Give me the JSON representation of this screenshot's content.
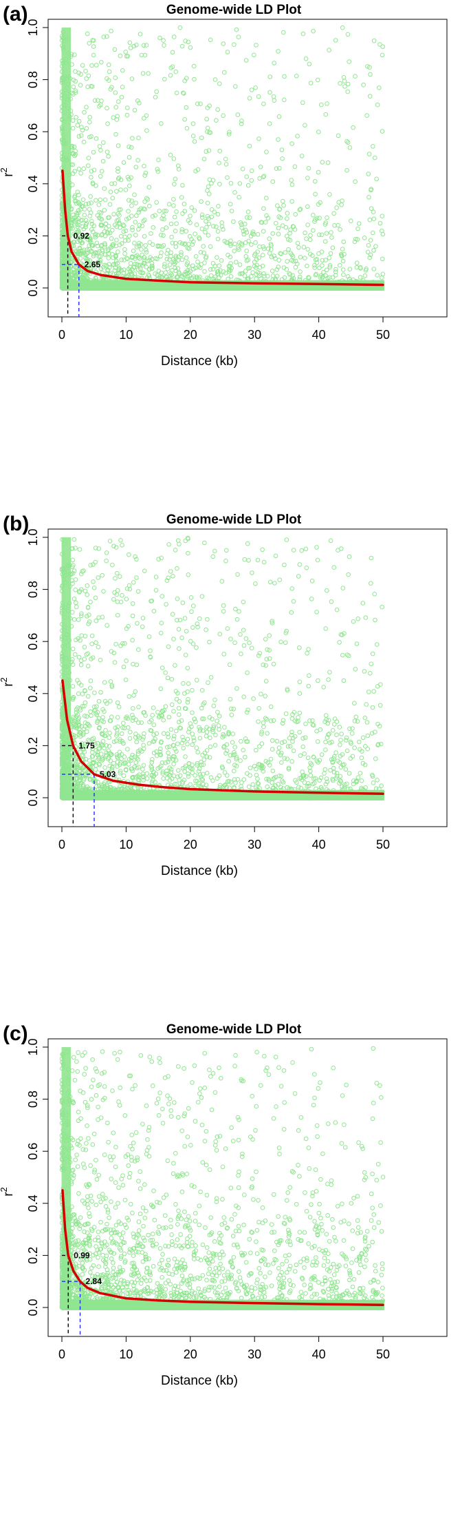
{
  "colors": {
    "points": "#90e690",
    "curve": "#d40000",
    "black_guides": "#000000",
    "blue_guides": "#1f2bff"
  },
  "chart_data": [
    {
      "type": "scatter",
      "panel_label": "(a)",
      "title": "Genome-wide LD Plot",
      "xlabel": "Distance (kb)",
      "ylabel": "r2",
      "xlim": [
        0,
        50
      ],
      "ylim": [
        0,
        1
      ],
      "xticks": [
        "0",
        "10",
        "20",
        "30",
        "40",
        "50"
      ],
      "yticks": [
        "0.0",
        "0.2",
        "0.4",
        "0.6",
        "0.8",
        "1.0"
      ],
      "point_marker": "open-circle",
      "series": [
        {
          "type": "line",
          "x": [
            0.1,
            0.5,
            0.92,
            1.5,
            2.65,
            4,
            6,
            10,
            15,
            20,
            30,
            40,
            50
          ],
          "y": [
            0.45,
            0.3,
            0.2,
            0.14,
            0.09,
            0.065,
            0.05,
            0.035,
            0.028,
            0.022,
            0.018,
            0.015,
            0.012
          ]
        }
      ],
      "annotations": [
        {
          "x": 0.92,
          "y": 0.2,
          "text": "0.92",
          "color": "black"
        },
        {
          "x": 2.65,
          "y": 0.09,
          "text": "2.65",
          "color": "blue"
        }
      ]
    },
    {
      "type": "scatter",
      "panel_label": "(b)",
      "title": "Genome-wide LD Plot",
      "xlabel": "Distance (kb)",
      "ylabel": "r2",
      "xlim": [
        0,
        50
      ],
      "ylim": [
        0,
        1
      ],
      "xticks": [
        "0",
        "10",
        "20",
        "30",
        "40",
        "50"
      ],
      "yticks": [
        "0.0",
        "0.2",
        "0.4",
        "0.6",
        "0.8",
        "1.0"
      ],
      "point_marker": "open-circle",
      "series": [
        {
          "type": "line",
          "x": [
            0.1,
            0.8,
            1.75,
            3,
            5.03,
            8,
            12,
            16,
            20,
            30,
            40,
            50
          ],
          "y": [
            0.45,
            0.3,
            0.2,
            0.14,
            0.09,
            0.065,
            0.05,
            0.04,
            0.033,
            0.024,
            0.019,
            0.015
          ]
        }
      ],
      "annotations": [
        {
          "x": 1.75,
          "y": 0.2,
          "text": "1.75",
          "color": "black"
        },
        {
          "x": 5.03,
          "y": 0.09,
          "text": "5.03",
          "color": "blue"
        }
      ]
    },
    {
      "type": "scatter",
      "panel_label": "(c)",
      "title": "Genome-wide LD Plot",
      "xlabel": "Distance (kb)",
      "ylabel": "r2",
      "xlim": [
        0,
        50
      ],
      "ylim": [
        0,
        1
      ],
      "xticks": [
        "0",
        "10",
        "20",
        "30",
        "40",
        "50"
      ],
      "yticks": [
        "0.0",
        "0.2",
        "0.4",
        "0.6",
        "0.8",
        "1.0"
      ],
      "point_marker": "open-circle",
      "series": [
        {
          "type": "line",
          "x": [
            0.1,
            0.5,
            0.99,
            1.8,
            2.84,
            4,
            6,
            10,
            15,
            20,
            30,
            40,
            50
          ],
          "y": [
            0.45,
            0.3,
            0.2,
            0.14,
            0.1,
            0.075,
            0.055,
            0.035,
            0.027,
            0.022,
            0.017,
            0.013,
            0.01
          ]
        }
      ],
      "annotations": [
        {
          "x": 0.99,
          "y": 0.2,
          "text": "0.99",
          "color": "black"
        },
        {
          "x": 2.84,
          "y": 0.1,
          "text": "2.84",
          "color": "blue"
        }
      ]
    }
  ]
}
